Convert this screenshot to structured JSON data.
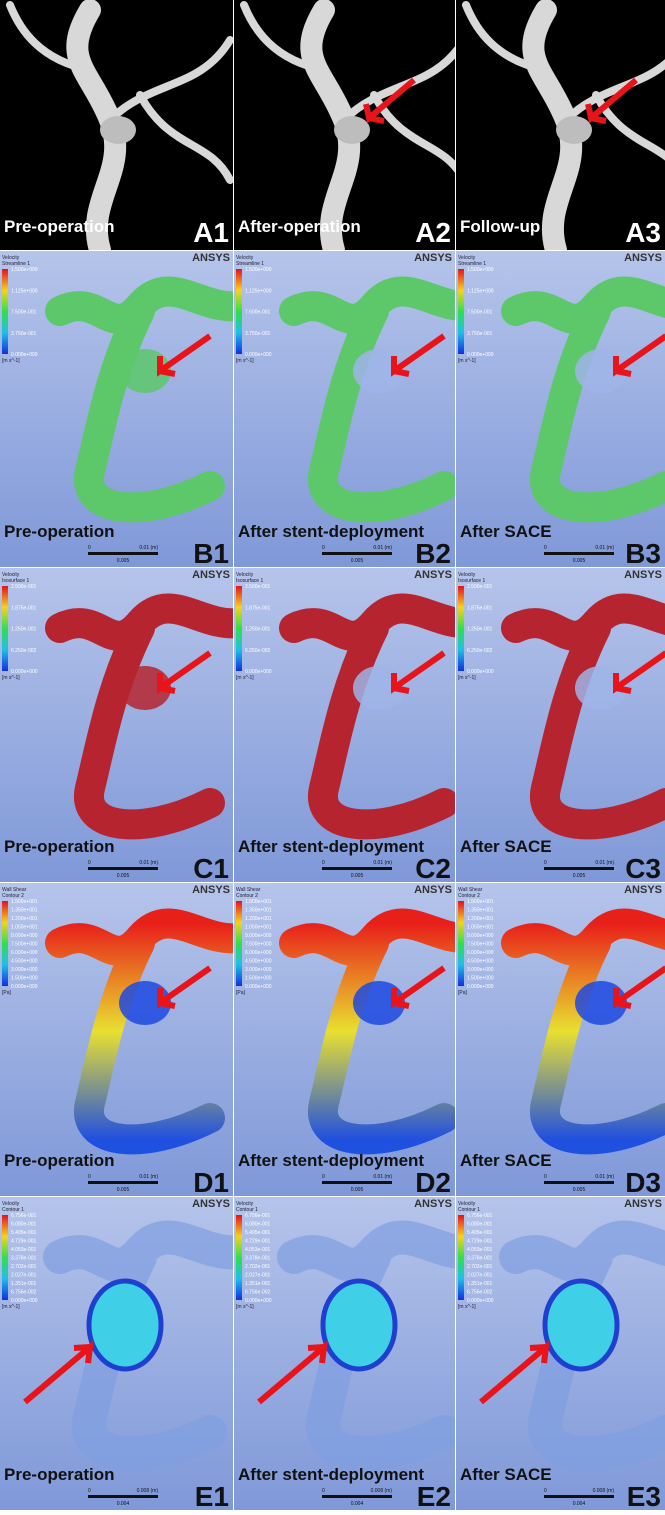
{
  "rows": [
    {
      "panels": [
        {
          "caption": "Pre-operation",
          "label": "A1"
        },
        {
          "caption": "After-operation",
          "label": "A2"
        },
        {
          "caption": "Follow-up",
          "label": "A3"
        }
      ]
    },
    {
      "logo": "ANSYS",
      "legend": {
        "title": "Velocity",
        "subtitle": "Streamline 1",
        "values": [
          "1.500e+000",
          "1.125e+000",
          "7.500e-001",
          "3.750e-001",
          "0.000e+000"
        ],
        "unit": "[m s^-1]"
      },
      "scale": [
        "0",
        "0.005",
        "0.01 (m)"
      ],
      "panels": [
        {
          "caption": "Pre-operation",
          "label": "B1"
        },
        {
          "caption": "After stent-deployment",
          "label": "B2"
        },
        {
          "caption": "After SACE",
          "label": "B3"
        }
      ]
    },
    {
      "logo": "ANSYS",
      "legend": {
        "title": "Velocity",
        "subtitle": "Isosurface 1",
        "values": [
          "2.500e-001",
          "1.875e-001",
          "1.250e-001",
          "6.250e-002",
          "0.000e+000"
        ],
        "unit": "[m s^-1]"
      },
      "scale": [
        "0",
        "0.005",
        "0.01 (m)"
      ],
      "panels": [
        {
          "caption": "Pre-operation",
          "label": "C1"
        },
        {
          "caption": "After stent-deployment",
          "label": "C2"
        },
        {
          "caption": "After SACE",
          "label": "C3"
        }
      ]
    },
    {
      "logo": "ANSYS",
      "legend": {
        "title": "Wall Shear",
        "subtitle": "Contour 2",
        "values": [
          "1.500e+001",
          "1.350e+001",
          "1.200e+001",
          "1.050e+001",
          "9.000e+000",
          "7.500e+000",
          "6.000e+000",
          "4.500e+000",
          "3.000e+000",
          "1.500e+000",
          "0.000e+000"
        ],
        "unit": "[Pa]"
      },
      "scale": [
        "0",
        "0.005",
        "0.01 (m)"
      ],
      "panels": [
        {
          "caption": "Pre-operation",
          "label": "D1"
        },
        {
          "caption": "After stent-deployment",
          "label": "D2"
        },
        {
          "caption": "After SACE",
          "label": "D3"
        }
      ]
    },
    {
      "logo": "ANSYS",
      "legend": {
        "title": "Velocity",
        "subtitle": "Contour 1",
        "values": [
          "6.756e-001",
          "6.080e-001",
          "5.405e-001",
          "4.729e-001",
          "4.053e-001",
          "3.378e-001",
          "2.702e-001",
          "2.027e-001",
          "1.351e-001",
          "6.756e-002",
          "0.000e+000"
        ],
        "unit": "[m s^-1]"
      },
      "scale": [
        "0",
        "0.004",
        "0.008 (m)"
      ],
      "panels": [
        {
          "caption": "Pre-operation",
          "label": "E1"
        },
        {
          "caption": "After stent-deployment",
          "label": "E2"
        },
        {
          "caption": "After SACE",
          "label": "E3"
        }
      ]
    }
  ]
}
